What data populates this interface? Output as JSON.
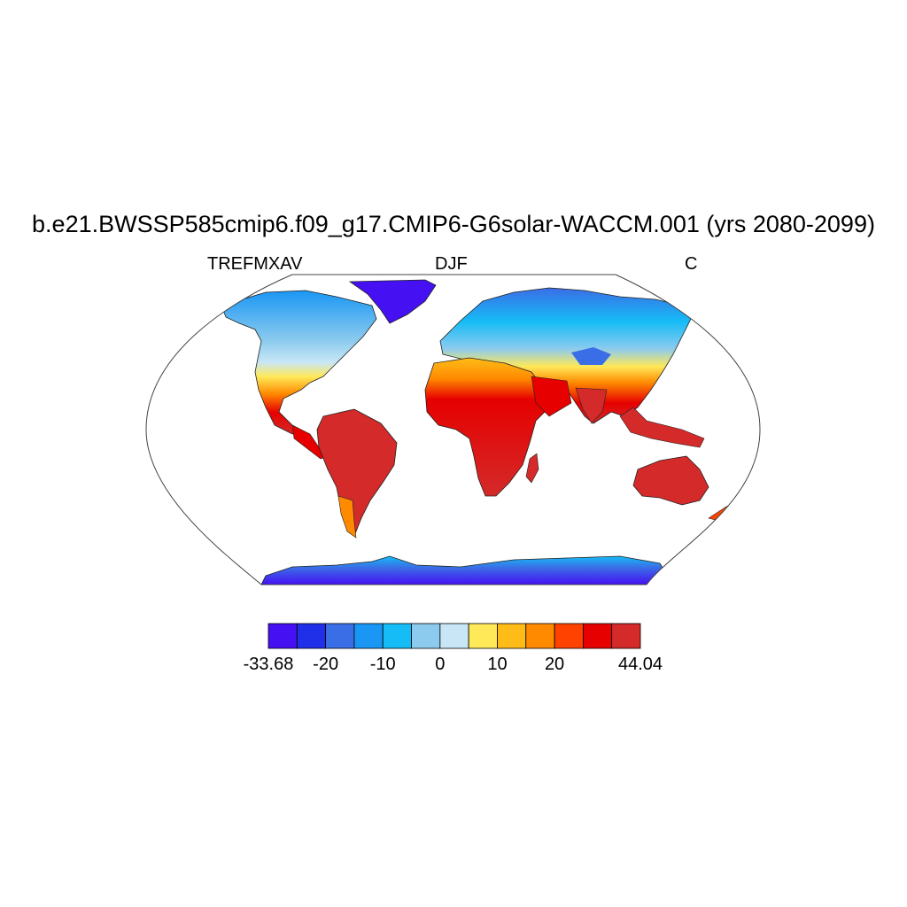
{
  "title": "b.e21.BWSSP585cmip6.f09_g17.CMIP6-G6solar-WACCM.001 (yrs 2080-2099)",
  "subtitle_left": "TREFMXAV",
  "subtitle_center": "DJF",
  "subtitle_right": "C",
  "colorbar": {
    "colors": [
      "#4510f2",
      "#2030e8",
      "#3a6ee6",
      "#1a96f4",
      "#16bcf6",
      "#8ccbee",
      "#c8e6f6",
      "#ffe959",
      "#ffbc18",
      "#ff8a00",
      "#ff4200",
      "#e60000",
      "#d42a2a"
    ],
    "tick_labels": [
      "-33.68",
      "-20",
      "-10",
      "0",
      "10",
      "20",
      "44.04"
    ]
  }
}
